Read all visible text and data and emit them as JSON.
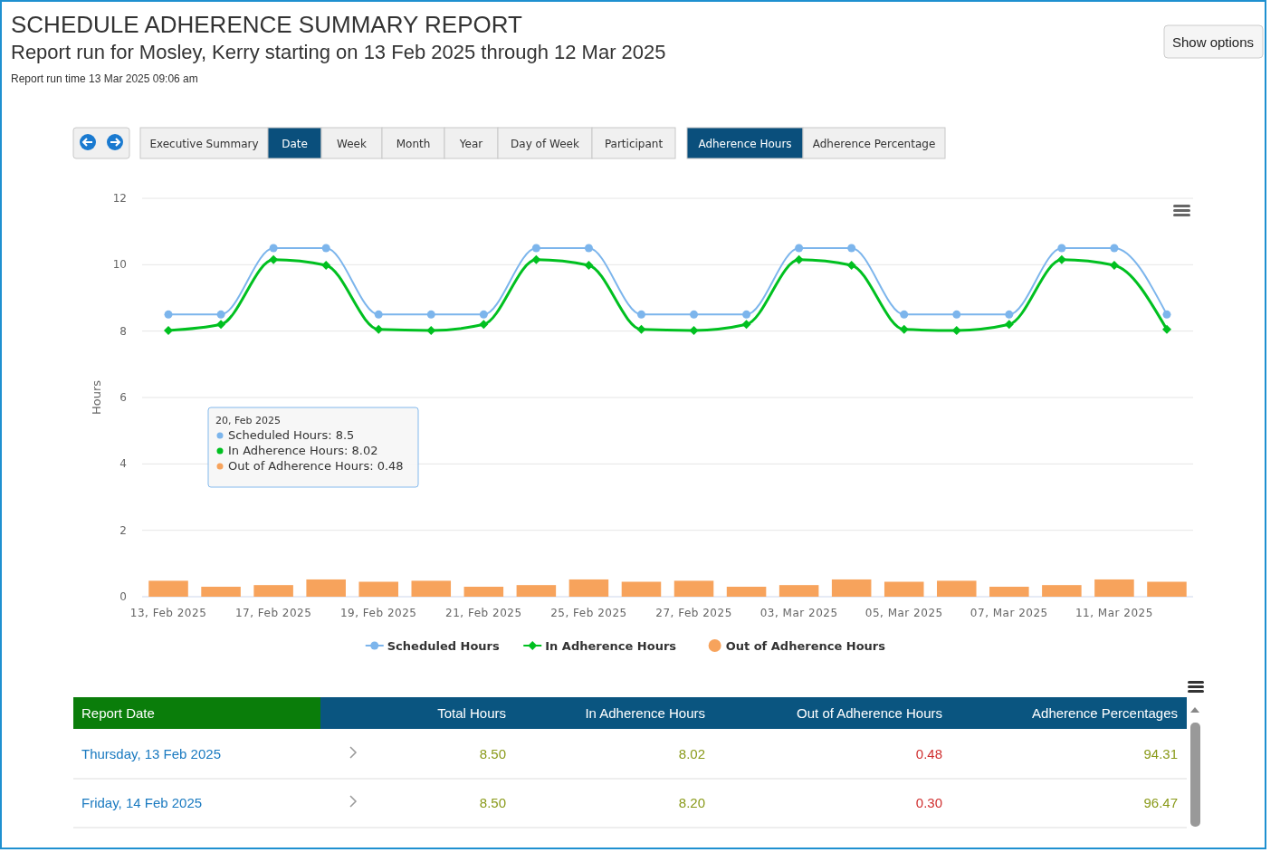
{
  "chart_data": [
    {
      "type": "line",
      "title": "SCHEDULE ADHERENCE SUMMARY REPORT",
      "subtitle": "Report run for Mosley, Kerry starting on 13 Feb 2025 through 12 Mar 2025",
      "ylabel": "Hours",
      "categories": [
        "13, Feb 2025",
        null,
        "17, Feb 2025",
        null,
        "19, Feb 2025",
        null,
        "21, Feb 2025",
        null,
        "25, Feb 2025",
        null,
        "27, Feb 2025",
        null,
        "03, Mar 2025",
        null,
        "05, Mar 2025",
        null,
        "07, Mar 2025",
        null,
        "11, Mar 2025",
        null
      ],
      "series": [
        {
          "name": "Scheduled Hours",
          "type": "line",
          "color": "#7cb5ec",
          "marker": "circle",
          "values": [
            8.5,
            8.5,
            10.5,
            10.5,
            8.5,
            8.5,
            8.5,
            10.5,
            10.5,
            8.5,
            8.5,
            8.5,
            10.5,
            10.5,
            8.5,
            8.5,
            8.5,
            10.5,
            10.5,
            8.5
          ]
        },
        {
          "name": "In Adherence Hours",
          "type": "line",
          "color": "#00c020",
          "marker": "diamond",
          "values": [
            8.02,
            8.2,
            10.15,
            9.98,
            8.05,
            8.02,
            8.2,
            10.15,
            9.98,
            8.05,
            8.02,
            8.2,
            10.15,
            9.98,
            8.05,
            8.02,
            8.2,
            10.15,
            9.98,
            8.05
          ]
        },
        {
          "name": "Out of Adherence Hours",
          "type": "bar",
          "color": "#f7a35c",
          "values": [
            0.48,
            0.3,
            0.35,
            0.52,
            0.45,
            0.48,
            0.3,
            0.35,
            0.52,
            0.45,
            0.48,
            0.3,
            0.35,
            0.52,
            0.45,
            0.48,
            0.3,
            0.35,
            0.52,
            0.45
          ]
        }
      ],
      "ylim": [
        0,
        12
      ],
      "yticks": [
        0,
        2,
        4,
        6,
        8,
        10,
        12
      ],
      "grid": "y",
      "legend": "bottom",
      "annotations": [
        "Report run time  13 Mar 2025 09:06 am",
        "20, Feb 2025",
        "Scheduled Hours: 8.5",
        "In Adherence Hours: 8.02",
        "Out of Adherence Hours: 0.48"
      ]
    },
    {
      "type": "other",
      "annotations": [
        "Show options",
        "Executive Summary",
        "Date",
        "Week",
        "Month",
        "Year",
        "Day of Week",
        "Participant",
        "Adherence Hours",
        "Adherence Percentage",
        "Report Date",
        "Total Hours",
        "In Adherence Hours",
        "Out of Adherence Hours",
        "Adherence Percentages",
        "Thursday, 13 Feb 2025",
        "8.50",
        "8.02",
        "0.48",
        "94.31",
        "Friday, 14 Feb 2025",
        "8.50",
        "8.20",
        "0.30",
        "96.47"
      ]
    }
  ]
}
